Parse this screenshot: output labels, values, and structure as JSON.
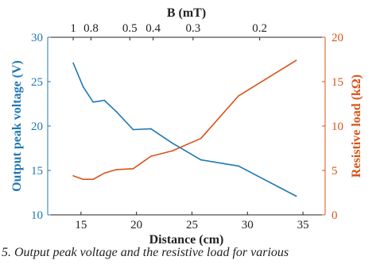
{
  "chart_data": {
    "type": "line",
    "xlabel": "Distance (cm)",
    "ylabel_left": "Output peak voltage (V)",
    "ylabel_right": "Resistive load (kΩ)",
    "top_axis_label": "B (mT)",
    "xlim": [
      12,
      37
    ],
    "ylim_left": [
      10,
      30
    ],
    "ylim_right": [
      0,
      20
    ],
    "x_ticks": [
      "15",
      "20",
      "25",
      "30",
      "35"
    ],
    "y_left_ticks": [
      "10",
      "15",
      "20",
      "25",
      "30"
    ],
    "y_right_ticks": [
      "0",
      "5",
      "10",
      "15",
      "20"
    ],
    "top_ticks": [
      {
        "x": 14.3,
        "label": "1"
      },
      {
        "x": 15.9,
        "label": "0.8"
      },
      {
        "x": 19.4,
        "label": "0.5"
      },
      {
        "x": 21.5,
        "label": "0.4"
      },
      {
        "x": 25.1,
        "label": "0.3"
      },
      {
        "x": 31.1,
        "label": "0.2"
      }
    ],
    "series": [
      {
        "axis": "left",
        "color": "#1f77b4",
        "x": [
          14.3,
          15.2,
          16.1,
          17.1,
          18.2,
          19.7,
          21.3,
          23.2,
          25.8,
          29.2,
          34.4
        ],
        "y": [
          27.1,
          24.4,
          22.7,
          22.9,
          21.6,
          19.6,
          19.7,
          18.1,
          16.2,
          15.5,
          12.1
        ]
      },
      {
        "axis": "right",
        "color": "#d95319",
        "x": [
          14.3,
          15.2,
          16.1,
          17.1,
          18.2,
          19.7,
          21.3,
          23.2,
          25.8,
          29.2,
          34.4
        ],
        "y": [
          4.4,
          4.0,
          4.0,
          4.7,
          5.1,
          5.2,
          6.6,
          7.2,
          8.6,
          13.4,
          17.4
        ]
      }
    ],
    "colors": {
      "left_axis": "#1f77b4",
      "right_axis": "#d95319"
    }
  },
  "caption": "5. Output peak voltage and the resistive load for various"
}
